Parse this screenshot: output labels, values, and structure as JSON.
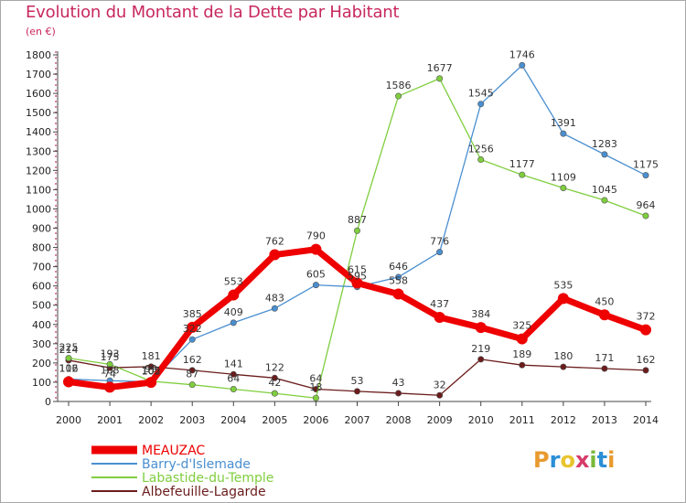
{
  "header": {
    "title": "Evolution du Montant de la Dette par Habitant",
    "subtitle": "(en €)"
  },
  "logo": {
    "text": "Proxiti",
    "colors": [
      "#e89a2e",
      "#2b8fd6",
      "#e8c42e",
      "#d63a6a",
      "#79b83a",
      "#2b8fd6",
      "#e89a2e"
    ]
  },
  "chart_data": {
    "type": "line",
    "title": "Evolution du Montant de la Dette par Habitant",
    "subtitle": "(en €)",
    "xlabel": "",
    "ylabel": "",
    "x": [
      2000,
      2001,
      2002,
      2003,
      2004,
      2005,
      2006,
      2007,
      2008,
      2009,
      2010,
      2011,
      2012,
      2013,
      2014
    ],
    "ylim": [
      0,
      1800
    ],
    "yticks": [
      0,
      100,
      200,
      300,
      400,
      500,
      600,
      700,
      800,
      900,
      1000,
      1100,
      1200,
      1300,
      1400,
      1500,
      1600,
      1700,
      1800
    ],
    "grid": false,
    "legend_position": "bottom-left",
    "series": [
      {
        "name": "Albefeuille-Lagarde",
        "color": "#6b1c1c",
        "labels": true,
        "values": [
          214,
          175,
          181,
          162,
          141,
          122,
          64,
          53,
          43,
          32,
          219,
          189,
          180,
          171,
          162
        ]
      },
      {
        "name": "Labastide-du-Temple",
        "color": "#7fce3e",
        "labels": true,
        "values": [
          225,
          193,
          105,
          87,
          64,
          42,
          18,
          887,
          1586,
          1677,
          1256,
          1177,
          1109,
          1045,
          964
        ]
      },
      {
        "name": "Barry-d'Islemade",
        "color": "#4a8fd0",
        "labels": true,
        "values": [
          116,
          108,
          102,
          322,
          409,
          483,
          605,
          595,
          646,
          776,
          1545,
          1746,
          1391,
          1283,
          1175
        ]
      },
      {
        "name": "MEAUZAC",
        "color": "#ee0000",
        "labels": true,
        "values": [
          102,
          74,
          99,
          385,
          553,
          762,
          790,
          615,
          558,
          437,
          384,
          325,
          535,
          450,
          372
        ]
      }
    ]
  }
}
